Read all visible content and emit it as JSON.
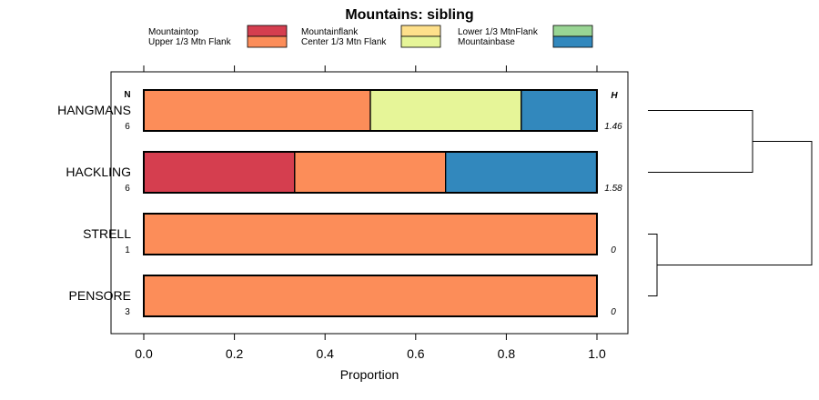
{
  "chart_data": {
    "type": "bar",
    "orientation": "horizontal",
    "stacked": true,
    "title": "Mountains: sibling",
    "xlabel": "Proportion",
    "ylabel": "",
    "xlim": [
      0,
      1
    ],
    "xticks": [
      "0.0",
      "0.2",
      "0.4",
      "0.6",
      "0.8",
      "1.0"
    ],
    "n_header": "N",
    "h_header": "H",
    "legend": [
      {
        "name": "Mountaintop",
        "color": "#d53e4f"
      },
      {
        "name": "Mountainflank",
        "color": "#fee08b"
      },
      {
        "name": "Lower 1/3 MtnFlank",
        "color": "#99d594"
      },
      {
        "name": "Upper 1/3 Mtn Flank",
        "color": "#fc8d59"
      },
      {
        "name": "Center 1/3 Mtn Flank",
        "color": "#e6f598"
      },
      {
        "name": "Mountainbase",
        "color": "#3288bd"
      }
    ],
    "categories": [
      "HANGMANS",
      "HACKLING",
      "STRELL",
      "PENSORE"
    ],
    "n": [
      "6",
      "6",
      "1",
      "3"
    ],
    "h": [
      "1.46",
      "1.58",
      "0",
      "0"
    ],
    "series": [
      {
        "name": "Mountaintop",
        "values": [
          0,
          0.333,
          0,
          0
        ]
      },
      {
        "name": "Mountainflank",
        "values": [
          0,
          0,
          0,
          0
        ]
      },
      {
        "name": "Lower 1/3 MtnFlank",
        "values": [
          0,
          0,
          0,
          0
        ]
      },
      {
        "name": "Upper 1/3 Mtn Flank",
        "values": [
          0.5,
          0.333,
          1.0,
          1.0
        ]
      },
      {
        "name": "Center 1/3 Mtn Flank",
        "values": [
          0.333,
          0,
          0,
          0
        ]
      },
      {
        "name": "Mountainbase",
        "values": [
          0.167,
          0.333,
          0,
          0
        ]
      }
    ],
    "dendrogram": {
      "merges": [
        [
          "HANGMANS",
          "HACKLING"
        ],
        [
          "STRELL",
          "PENSORE"
        ],
        [
          "HANGMANS+HACKLING",
          "STRELL+PENSORE"
        ]
      ],
      "heights": [
        0.3,
        0.05,
        1.0
      ]
    }
  }
}
